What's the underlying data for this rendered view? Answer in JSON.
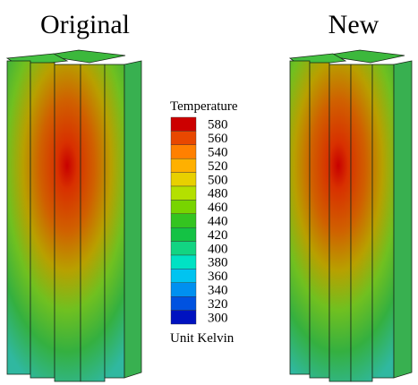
{
  "panels": [
    {
      "title": "Original"
    },
    {
      "title": "New"
    }
  ],
  "legend": {
    "title": "Temperature",
    "levels": [
      580,
      560,
      540,
      520,
      500,
      480,
      460,
      440,
      420,
      400,
      380,
      360,
      340,
      320,
      300
    ],
    "colors": [
      "#cc0000",
      "#e84800",
      "#ff8000",
      "#ffb000",
      "#e8d000",
      "#b4e000",
      "#78d400",
      "#34c420",
      "#14c244",
      "#12d482",
      "#00e2c4",
      "#00c4f0",
      "#0090f0",
      "#0052e0",
      "#0012c0"
    ],
    "unit": "Unit Kelvin"
  }
}
